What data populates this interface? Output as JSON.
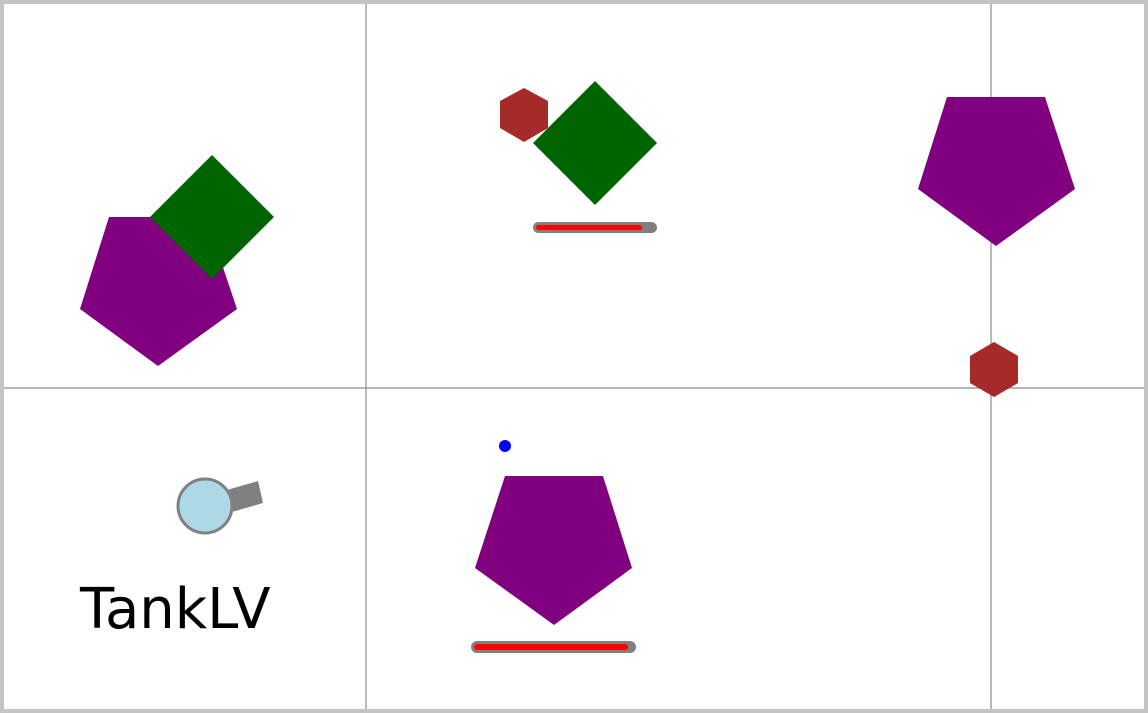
{
  "player": {
    "name": "TankLV",
    "body_color": "#add8e6",
    "barrel_color": "#808080",
    "outline_color": "#808080"
  },
  "colors": {
    "background": "#ffffff",
    "grid": "#8c8c8c",
    "border": "#c4c4c4",
    "pentagon": "#800080",
    "square": "#006400",
    "hexagon": "#a52a2a",
    "bullet": "#0000ff",
    "health_fill": "#ff0000",
    "health_track": "#808080"
  },
  "health_bars": [
    {
      "target": "square",
      "value": 0.9
    },
    {
      "target": "pentagon",
      "value": 0.97
    }
  ]
}
